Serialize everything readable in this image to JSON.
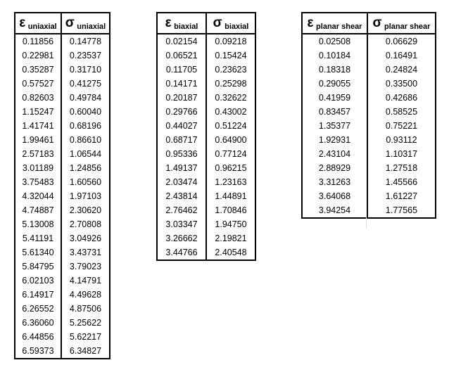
{
  "tables": [
    {
      "columns": [
        {
          "symbol": "ε",
          "subscript": "uniaxial"
        },
        {
          "symbol": "σ",
          "subscript": "uniaxial"
        }
      ],
      "rows": [
        [
          "0.11856",
          "0.14778"
        ],
        [
          "0.22981",
          "0.23537"
        ],
        [
          "0.35287",
          "0.31710"
        ],
        [
          "0.57527",
          "0.41275"
        ],
        [
          "0.82603",
          "0.49784"
        ],
        [
          "1.15247",
          "0.60040"
        ],
        [
          "1.41741",
          "0.68196"
        ],
        [
          "1.99461",
          "0.86610"
        ],
        [
          "2.57183",
          "1.06544"
        ],
        [
          "3.01189",
          "1.24856"
        ],
        [
          "3.75483",
          "1.60560"
        ],
        [
          "4.32044",
          "1.97103"
        ],
        [
          "4.74887",
          "2.30620"
        ],
        [
          "5.13008",
          "2.70808"
        ],
        [
          "5.41191",
          "3.04926"
        ],
        [
          "5.61340",
          "3.43731"
        ],
        [
          "5.84795",
          "3.79023"
        ],
        [
          "6.02103",
          "4.14791"
        ],
        [
          "6.14917",
          "4.49628"
        ],
        [
          "6.26552",
          "4.87506"
        ],
        [
          "6.36060",
          "5.25622"
        ],
        [
          "6.44856",
          "5.62217"
        ],
        [
          "6.59373",
          "6.34827"
        ]
      ]
    },
    {
      "columns": [
        {
          "symbol": "ε",
          "subscript": "biaxial"
        },
        {
          "symbol": "σ",
          "subscript": "biaxial"
        }
      ],
      "rows": [
        [
          "0.02154",
          "0.09218"
        ],
        [
          "0.06521",
          "0.15424"
        ],
        [
          "0.11705",
          "0.23623"
        ],
        [
          "0.14171",
          "0.25298"
        ],
        [
          "0.20187",
          "0.32622"
        ],
        [
          "0.29766",
          "0.43002"
        ],
        [
          "0.44027",
          "0.51224"
        ],
        [
          "0.68717",
          "0.64900"
        ],
        [
          "0.95336",
          "0.77124"
        ],
        [
          "1.49137",
          "0.96215"
        ],
        [
          "2.03474",
          "1.23163"
        ],
        [
          "2.43814",
          "1.44891"
        ],
        [
          "2.76462",
          "1.70846"
        ],
        [
          "3.03347",
          "1.94750"
        ],
        [
          "3.26662",
          "2.19821"
        ],
        [
          "3.44766",
          "2.40548"
        ]
      ]
    },
    {
      "columns": [
        {
          "symbol": "ε",
          "subscript": "planar shear"
        },
        {
          "symbol": "σ",
          "subscript": "planar shear"
        }
      ],
      "rows": [
        [
          "0.02508",
          "0.06629"
        ],
        [
          "0.10184",
          "0.16491"
        ],
        [
          "0.18318",
          "0.24824"
        ],
        [
          "0.29055",
          "0.33500"
        ],
        [
          "0.41959",
          "0.42686"
        ],
        [
          "0.83457",
          "0.58525"
        ],
        [
          "1.35377",
          "0.75221"
        ],
        [
          "1.92931",
          "0.93112"
        ],
        [
          "2.43104",
          "1.10317"
        ],
        [
          "2.88929",
          "1.27518"
        ],
        [
          "3.31263",
          "1.45566"
        ],
        [
          "3.64068",
          "1.61227"
        ],
        [
          "3.94254",
          "1.77565"
        ]
      ]
    }
  ]
}
